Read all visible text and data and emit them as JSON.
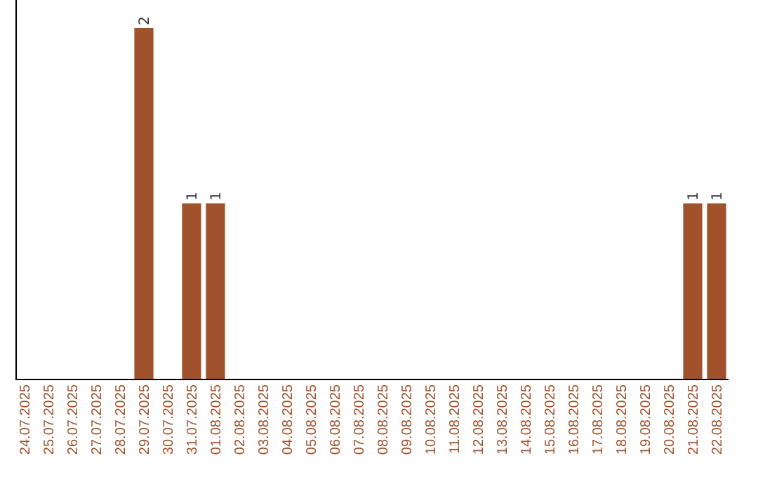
{
  "chart_data": {
    "type": "bar",
    "categories": [
      "24.07.2025",
      "25.07.2025",
      "26.07.2025",
      "27.07.2025",
      "28.07.2025",
      "29.07.2025",
      "30.07.2025",
      "31.07.2025",
      "01.08.2025",
      "02.08.2025",
      "03.08.2025",
      "04.08.2025",
      "05.08.2025",
      "06.08.2025",
      "07.08.2025",
      "08.08.2025",
      "09.08.2025",
      "10.08.2025",
      "11.08.2025",
      "12.08.2025",
      "13.08.2025",
      "14.08.2025",
      "15.08.2025",
      "16.08.2025",
      "17.08.2025",
      "18.08.2025",
      "19.08.2025",
      "20.08.2025",
      "21.08.2025",
      "22.08.2025"
    ],
    "values": [
      0,
      0,
      0,
      0,
      0,
      2,
      0,
      1,
      1,
      0,
      0,
      0,
      0,
      0,
      0,
      0,
      0,
      0,
      0,
      0,
      0,
      0,
      0,
      0,
      0,
      0,
      0,
      0,
      1,
      1
    ],
    "value_labels": [
      null,
      null,
      null,
      null,
      null,
      "2",
      null,
      "1",
      "1",
      null,
      null,
      null,
      null,
      null,
      null,
      null,
      null,
      null,
      null,
      null,
      null,
      null,
      null,
      null,
      null,
      null,
      null,
      null,
      "1",
      "1"
    ],
    "color": "#a0522d",
    "ylim": [
      0,
      2
    ],
    "tick_labels": "x"
  }
}
